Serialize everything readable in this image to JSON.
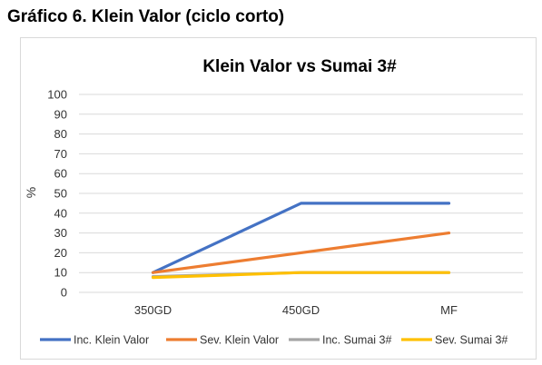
{
  "caption": "Gráfico 6. Klein Valor (ciclo corto)",
  "chart_data": {
    "type": "line",
    "title": "Klein Valor vs Sumai 3#",
    "xlabel": "",
    "ylabel": "%",
    "categories": [
      "350GD",
      "450GD",
      "MF"
    ],
    "ylim": [
      0,
      100
    ],
    "yticks": [
      0,
      10,
      20,
      30,
      40,
      50,
      60,
      70,
      80,
      90,
      100
    ],
    "grid": true,
    "legend_position": "bottom",
    "series": [
      {
        "name": "Inc. Klein Valor",
        "values": [
          10,
          45,
          45
        ],
        "color": "#4472c4"
      },
      {
        "name": "Sev. Klein Valor",
        "values": [
          10,
          20,
          30
        ],
        "color": "#ed7d31"
      },
      {
        "name": "Inc. Sumai 3#",
        "values": [
          8,
          10,
          10
        ],
        "color": "#a5a5a5"
      },
      {
        "name": "Sev. Sumai 3#",
        "values": [
          7.5,
          10,
          10
        ],
        "color": "#ffc000"
      }
    ]
  }
}
